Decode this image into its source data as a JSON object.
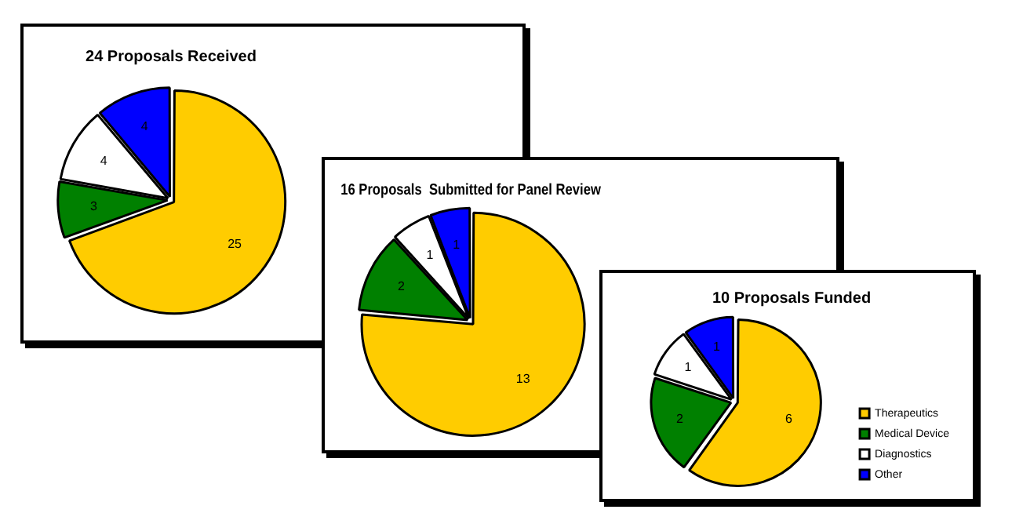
{
  "chart_data": [
    {
      "type": "pie",
      "title": "24 Proposals Received",
      "categories": [
        null,
        null,
        null,
        null
      ],
      "values": [
        25,
        3,
        4,
        4
      ],
      "colors": [
        "#ffcc00",
        "#008000",
        "#ffffff",
        "#0000ff"
      ],
      "data_labels": true
    },
    {
      "type": "pie",
      "title": "16 Proposals  Submitted for Panel Review",
      "categories": [
        null,
        null,
        null,
        null
      ],
      "values": [
        13,
        2,
        1,
        1
      ],
      "colors": [
        "#ffcc00",
        "#008000",
        "#ffffff",
        "#0000ff"
      ],
      "data_labels": true
    },
    {
      "type": "pie",
      "title": "10 Proposals Funded",
      "categories": [
        "Therapeutics",
        "Medical Device",
        "Diagnostics",
        "Other"
      ],
      "values": [
        6,
        2,
        1,
        1
      ],
      "colors": [
        "#ffcc00",
        "#008000",
        "#ffffff",
        "#0000ff"
      ],
      "data_labels": true,
      "legend": "bottom right"
    }
  ]
}
